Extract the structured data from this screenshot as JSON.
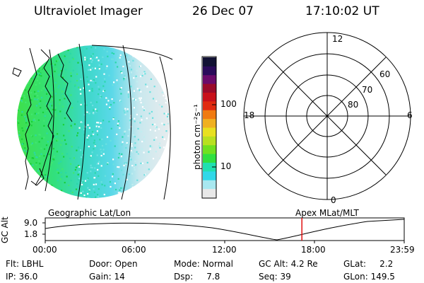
{
  "header": {
    "title": "Ultraviolet Imager",
    "date": "26 Dec 07",
    "time": "17:10:02 UT"
  },
  "colorbar": {
    "label": "photon cm⁻²s⁻¹",
    "ticks": [
      "100",
      "10"
    ],
    "colors": [
      "#111133",
      "#2a0a5a",
      "#6a0a6a",
      "#9a0a2a",
      "#c8101a",
      "#e02a10",
      "#f07a10",
      "#f0b020",
      "#e8e020",
      "#b8e020",
      "#70e020",
      "#30e040",
      "#20e0b0",
      "#30d8e8",
      "#a8e8f0",
      "#e8e8e8"
    ]
  },
  "polar": {
    "labels": {
      "top": "12",
      "left": "18",
      "right": "6",
      "bottom": "0"
    },
    "rings": [
      "60",
      "70",
      "80"
    ]
  },
  "timeline": {
    "y_axis_label": "GC Alt",
    "y_ticks": [
      "9.0",
      "1.8"
    ],
    "left_caption": "Geographic Lat/Lon",
    "right_caption": "Apex  MLat/MLT",
    "x_ticks": [
      "00:00",
      "06:00",
      "12:00",
      "18:00",
      "23:59"
    ],
    "current_time_marker_fraction": 0.715
  },
  "info": {
    "flt": "Flt: LBHL",
    "ip": "IP: 36.0",
    "door": "Door: Open",
    "gain": "Gain: 14",
    "mode": "Mode: Normal",
    "dsp": "Dsp:     7.8",
    "gcalt": "GC Alt: 4.2 Re",
    "seq": "Seq: 39",
    "glat": "GLat:     2.2",
    "glon": "GLon: 149.5"
  }
}
